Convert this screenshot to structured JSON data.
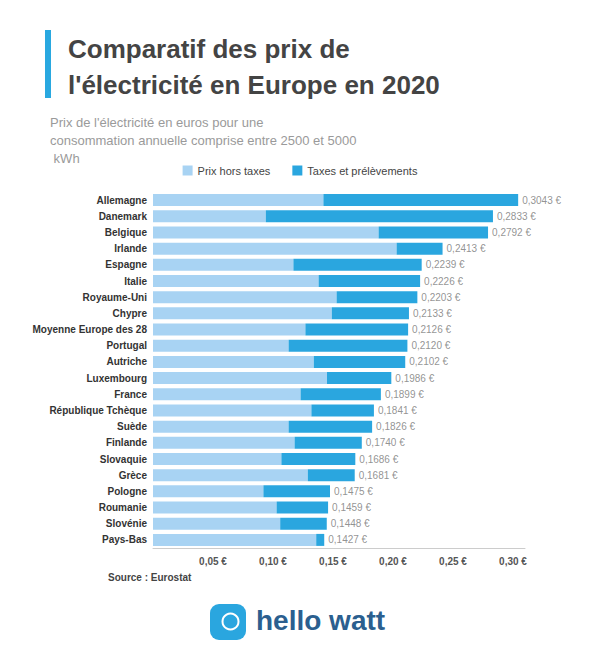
{
  "chart_data": {
    "type": "bar",
    "orientation": "horizontal",
    "stacked": true,
    "title": "Comparatif des prix de l'électricité en Europe en 2020",
    "subtitle": "Prix de l'électricité en euros pour une consommation annuelle comprise entre 2500 et 5000 kWh",
    "source": "Source : Eurostat",
    "logo": "hello watt",
    "legend": "top",
    "grid": false,
    "categories": [
      "Allemagne",
      "Danemark",
      "Belgique",
      "Irlande",
      "Espagne",
      "Italie",
      "Royaume-Uni",
      "Chypre",
      "Moyenne Europe des 28",
      "Portugal",
      "Autriche",
      "Luxembourg",
      "France",
      "République Tchèque",
      "Suède",
      "Finlande",
      "Slovaquie",
      "Grèce",
      "Pologne",
      "Roumanie",
      "Slovénie",
      "Pays-Bas"
    ],
    "series": [
      {
        "name": "Prix hors taxes",
        "color": "#a8d3f3",
        "values": [
          0.142,
          0.094,
          0.188,
          0.203,
          0.117,
          0.138,
          0.153,
          0.149,
          0.127,
          0.113,
          0.134,
          0.145,
          0.123,
          0.132,
          0.113,
          0.118,
          0.107,
          0.129,
          0.092,
          0.103,
          0.106,
          0.136
        ]
      },
      {
        "name": "Taxes et prélèvements",
        "color": "#2aa6df",
        "values": [
          0.1623,
          0.1893,
          0.0912,
          0.0383,
          0.1069,
          0.0846,
          0.0673,
          0.0643,
          0.0856,
          0.099,
          0.0762,
          0.0536,
          0.0669,
          0.0521,
          0.0696,
          0.056,
          0.0616,
          0.0391,
          0.0555,
          0.0429,
          0.0388,
          0.0067
        ]
      }
    ],
    "totals": [
      0.3043,
      0.2833,
      0.2792,
      0.2413,
      0.2239,
      0.2226,
      0.2203,
      0.2133,
      0.2126,
      0.212,
      0.2102,
      0.1986,
      0.1899,
      0.1841,
      0.1826,
      0.174,
      0.1686,
      0.1681,
      0.1475,
      0.1459,
      0.1448,
      0.1427
    ],
    "total_labels": [
      "0,3043 €",
      "0,2833 €",
      "0,2792 €",
      "0,2413 €",
      "0,2239 €",
      "0,2226 €",
      "0,2203 €",
      "0,2133 €",
      "0,2126 €",
      "0,2120 €",
      "0,2102 €",
      "0,1986 €",
      "0,1899 €",
      "0,1841 €",
      "0,1826 €",
      "0,1740 €",
      "0,1686 €",
      "0,1681 €",
      "0,1475 €",
      "0,1459 €",
      "0,1448 €",
      "0,1427 €"
    ],
    "xlim": [
      0,
      0.31
    ],
    "xticks": [
      {
        "value": 0.05,
        "label": "0,05 €"
      },
      {
        "value": 0.1,
        "label": "0,10 €"
      },
      {
        "value": 0.15,
        "label": "0,15 €"
      },
      {
        "value": 0.2,
        "label": "0,20 €"
      },
      {
        "value": 0.25,
        "label": "0,25 €"
      },
      {
        "value": 0.3,
        "label": "0,30 €"
      }
    ]
  }
}
